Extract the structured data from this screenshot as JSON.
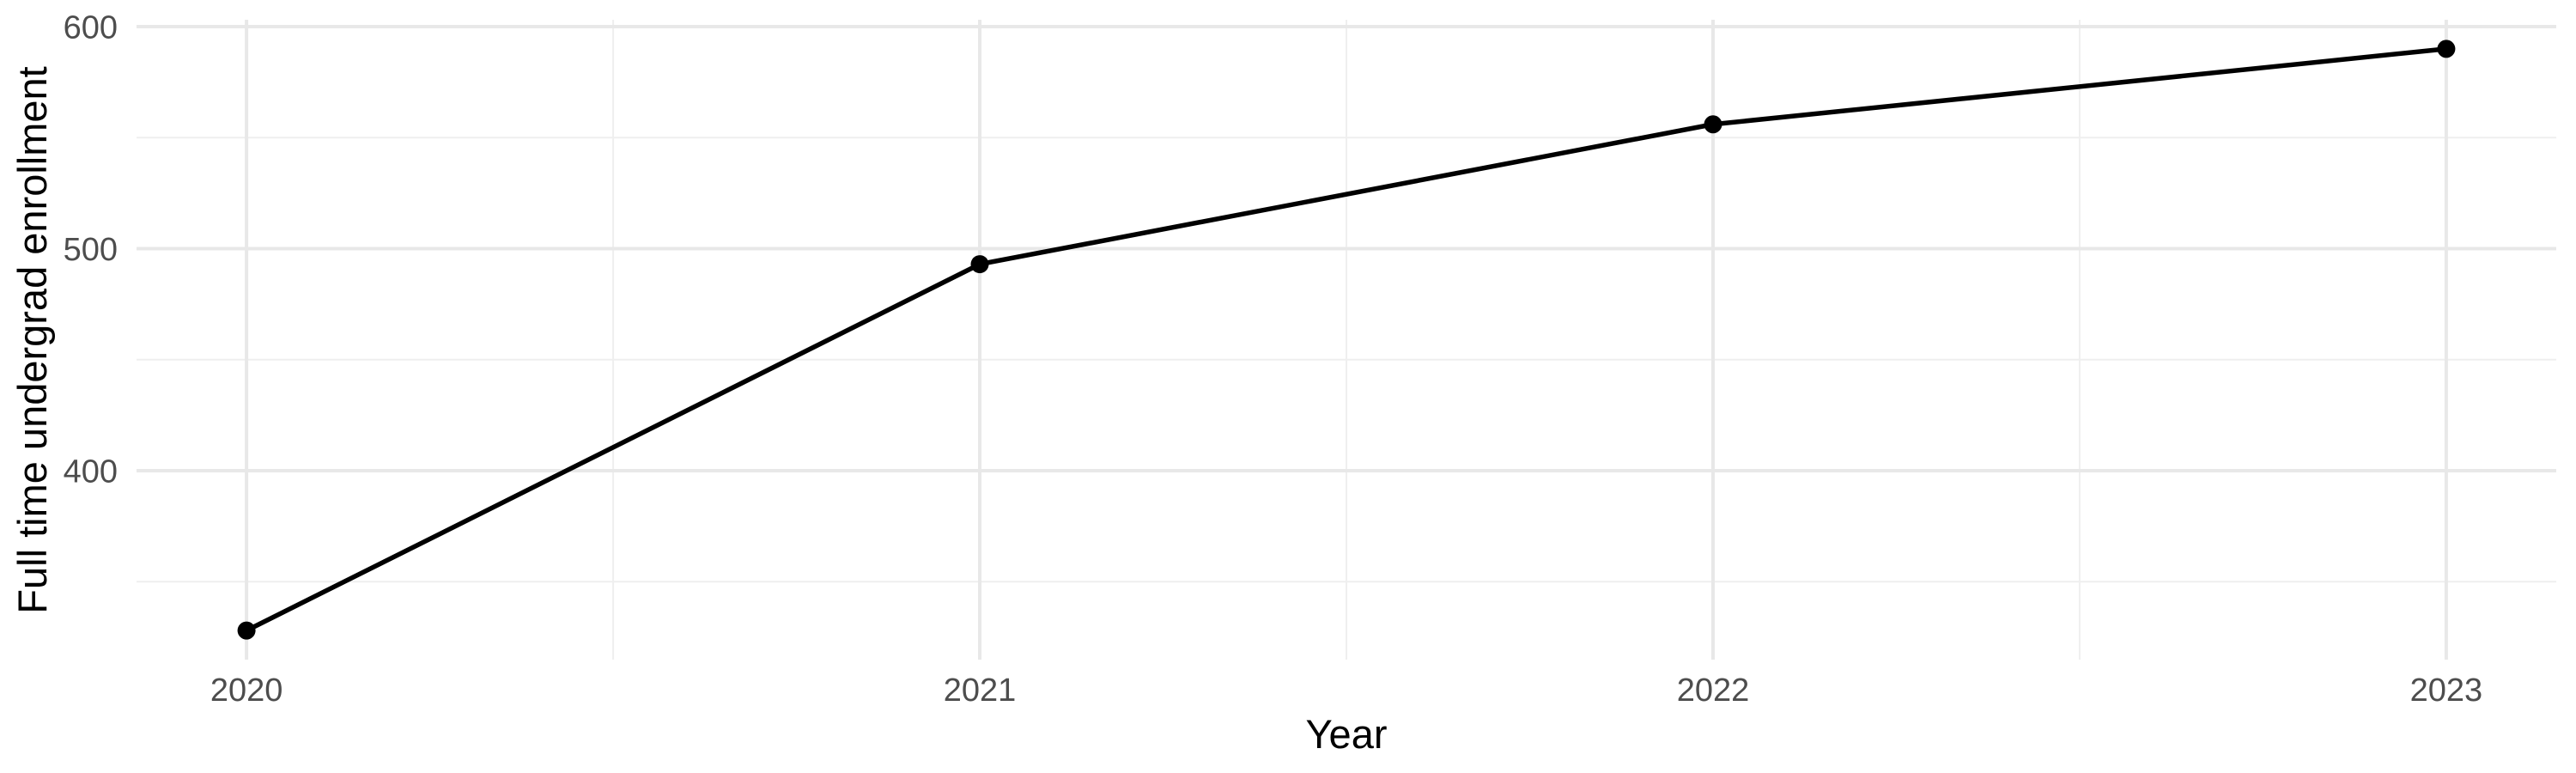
{
  "chart_data": {
    "type": "line",
    "title": "",
    "xlabel": "Year",
    "ylabel": "Full time undergrad enrollment",
    "x": [
      2020,
      2021,
      2022,
      2023
    ],
    "series": [
      {
        "name": "Full time undergrad enrollment",
        "values": [
          328,
          493,
          556,
          590
        ]
      }
    ],
    "xlim": [
      2019.85,
      2023.15
    ],
    "ylim": [
      314.9,
      603.1
    ],
    "x_major_ticks": [
      2020,
      2021,
      2022,
      2023
    ],
    "x_tick_labels": [
      "2020",
      "2021",
      "2022",
      "2023"
    ],
    "x_minor_ticks": [
      2020.5,
      2021.5,
      2022.5
    ],
    "y_major_ticks": [
      400,
      500,
      600
    ],
    "y_tick_labels": [
      "400",
      "500",
      "600"
    ],
    "y_minor_ticks": [
      350,
      450,
      550
    ],
    "grid": "major-and-minor",
    "legend": "none",
    "marker": "filled-circle",
    "colors": {
      "line": "#000000",
      "point": "#000000",
      "grid_major": "#E8E8E8",
      "grid_minor": "#EFEFEF",
      "tick_label": "#4D4D4D",
      "axis_title": "#000000",
      "background": "#FFFFFF"
    }
  }
}
